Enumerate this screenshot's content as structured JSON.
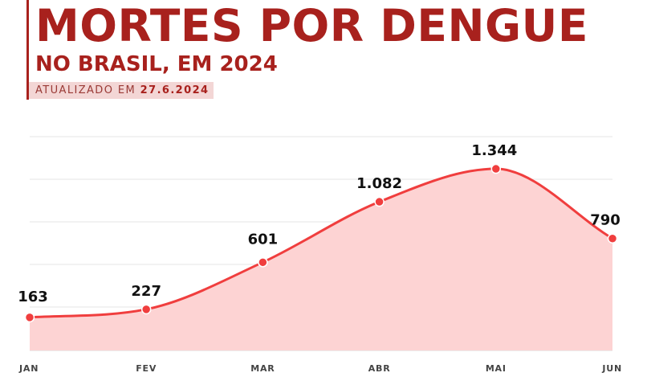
{
  "header": {
    "title": "MORTES POR DENGUE",
    "subtitle": "NO BRASIL, EM 2024",
    "updated_prefix": "ATUALIZADO EM",
    "updated_date": "27.6.2024"
  },
  "colors": {
    "brand": "#a8211d",
    "line": "#f03e3e",
    "fill": "#fdd3d3"
  },
  "chart_data": {
    "type": "area",
    "title": "MORTES POR DENGUE",
    "subtitle": "NO BRASIL, EM 2024",
    "categories": [
      "JAN",
      "FEV",
      "MAR",
      "ABR",
      "MAI",
      "JUN"
    ],
    "series": [
      {
        "name": "Mortes por dengue",
        "values": [
          163,
          227,
          601,
          1082,
          1344,
          790
        ],
        "labels": [
          "163",
          "227",
          "601",
          "1.082",
          "1.344",
          "790"
        ]
      }
    ],
    "xlabel": "",
    "ylabel": "",
    "ylim": [
      -100,
      1600
    ],
    "grid": true,
    "legend": "none"
  }
}
